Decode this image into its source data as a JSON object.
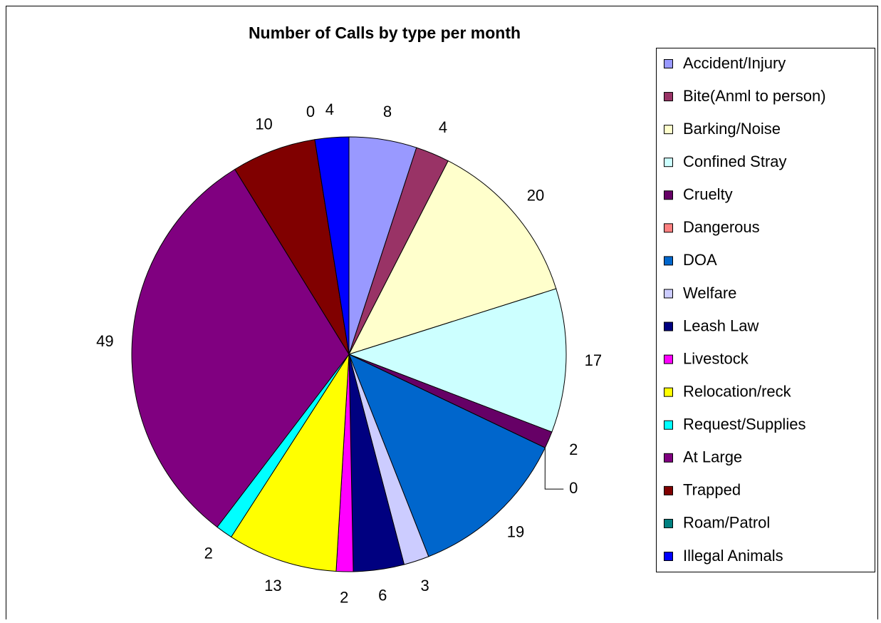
{
  "chart_data": {
    "type": "pie",
    "title": "Number of Calls by type per month",
    "categories": [
      "Accident/Injury",
      "Bite(Anml to person)",
      "Barking/Noise",
      "Confined Stray",
      "Cruelty",
      "Dangerous",
      "DOA",
      "Welfare",
      "Leash Law",
      "Livestock",
      "Relocation/reck",
      "Request/Supplies",
      "At Large",
      "Trapped",
      "Roam/Patrol",
      "Illegal Animals"
    ],
    "values": [
      8,
      4,
      20,
      17,
      2,
      0,
      19,
      3,
      6,
      2,
      13,
      2,
      49,
      10,
      0,
      4
    ],
    "colors": [
      "#9999ff",
      "#993366",
      "#ffffcc",
      "#ccffff",
      "#660066",
      "#ff8080",
      "#0066cc",
      "#ccccff",
      "#000080",
      "#ff00ff",
      "#ffff00",
      "#00ffff",
      "#800080",
      "#800000",
      "#008080",
      "#0000ff"
    ],
    "legend": "right"
  }
}
